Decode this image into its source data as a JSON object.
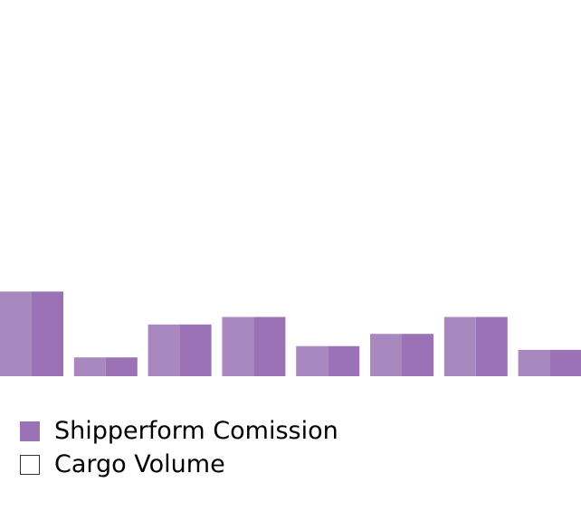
{
  "chart_data": {
    "type": "bar",
    "categories": [
      "",
      "",
      "",
      "",
      "",
      "",
      "",
      ""
    ],
    "series": [
      {
        "name": "Shipperform Comission",
        "values": [
          90,
          20,
          55,
          63,
          32,
          45,
          63,
          28
        ],
        "color": "#9b72b6",
        "highlight_color": "#a988bf"
      },
      {
        "name": "Cargo Volume",
        "values": [
          null,
          null,
          null,
          null,
          null,
          null,
          null,
          null
        ],
        "color": "#ffffff",
        "border_color": "#333333"
      }
    ],
    "ylim": [
      0,
      400
    ],
    "grid": false,
    "legend_position": "bottom-left"
  }
}
